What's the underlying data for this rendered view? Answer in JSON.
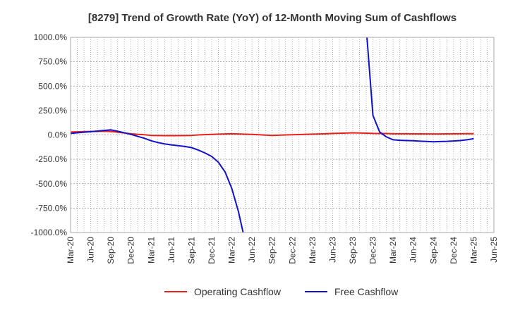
{
  "chart_data": {
    "type": "line",
    "title": "[8279]  Trend of Growth Rate (YoY) of 12-Month Moving Sum of Cashflows",
    "xlabel": "",
    "ylabel": "",
    "ylim": [
      -1000,
      1000
    ],
    "grid": true,
    "legend_position": "bottom",
    "x_tick_labels": [
      "Mar-20",
      "Jun-20",
      "Sep-20",
      "Dec-20",
      "Mar-21",
      "Jun-21",
      "Sep-21",
      "Dec-21",
      "Mar-22",
      "Jun-22",
      "Sep-22",
      "Dec-22",
      "Mar-23",
      "Jun-23",
      "Sep-23",
      "Dec-23",
      "Mar-24",
      "Jun-24",
      "Sep-24",
      "Dec-24",
      "Mar-25",
      "Jun-25"
    ],
    "y_tick_labels": [
      "1000.0%",
      "750.0%",
      "500.0%",
      "250.0%",
      "0.0%",
      "-250.0%",
      "-500.0%",
      "-750.0%",
      "-1000.0%"
    ],
    "y_ticks": [
      1000,
      750,
      500,
      250,
      0,
      -250,
      -500,
      -750,
      -1000
    ],
    "series": [
      {
        "name": "Operating Cashflow",
        "color": "#e8211b",
        "points": [
          [
            "2020-03",
            30
          ],
          [
            "2020-04",
            32
          ],
          [
            "2020-05",
            34
          ],
          [
            "2020-06",
            35
          ],
          [
            "2020-07",
            36
          ],
          [
            "2020-08",
            38
          ],
          [
            "2020-09",
            35
          ],
          [
            "2020-10",
            28
          ],
          [
            "2020-11",
            20
          ],
          [
            "2020-12",
            12
          ],
          [
            "2021-01",
            6
          ],
          [
            "2021-02",
            2
          ],
          [
            "2021-03",
            -5
          ],
          [
            "2021-04",
            -6
          ],
          [
            "2021-05",
            -7
          ],
          [
            "2021-06",
            -7
          ],
          [
            "2021-07",
            -7
          ],
          [
            "2021-08",
            -6
          ],
          [
            "2021-09",
            -5
          ],
          [
            "2021-10",
            0
          ],
          [
            "2021-11",
            3
          ],
          [
            "2021-12",
            5
          ],
          [
            "2022-01",
            8
          ],
          [
            "2022-02",
            10
          ],
          [
            "2022-03",
            12
          ],
          [
            "2022-04",
            10
          ],
          [
            "2022-05",
            7
          ],
          [
            "2022-06",
            5
          ],
          [
            "2022-07",
            2
          ],
          [
            "2022-08",
            -2
          ],
          [
            "2022-09",
            -5
          ],
          [
            "2022-10",
            -3
          ],
          [
            "2022-11",
            0
          ],
          [
            "2022-12",
            2
          ],
          [
            "2023-01",
            4
          ],
          [
            "2023-02",
            6
          ],
          [
            "2023-03",
            8
          ],
          [
            "2023-04",
            10
          ],
          [
            "2023-05",
            12
          ],
          [
            "2023-06",
            15
          ],
          [
            "2023-07",
            17
          ],
          [
            "2023-08",
            19
          ],
          [
            "2023-09",
            22
          ],
          [
            "2023-10",
            20
          ],
          [
            "2023-11",
            18
          ],
          [
            "2023-12",
            15
          ],
          [
            "2024-01",
            14
          ],
          [
            "2024-02",
            14
          ],
          [
            "2024-03",
            12
          ],
          [
            "2024-04",
            12
          ],
          [
            "2024-05",
            12
          ],
          [
            "2024-06",
            11
          ],
          [
            "2024-07",
            11
          ],
          [
            "2024-08",
            10
          ],
          [
            "2024-09",
            10
          ],
          [
            "2024-10",
            10
          ],
          [
            "2024-11",
            11
          ],
          [
            "2024-12",
            12
          ],
          [
            "2025-01",
            12
          ],
          [
            "2025-02",
            13
          ],
          [
            "2025-03",
            13
          ]
        ]
      },
      {
        "name": "Free Cashflow",
        "color": "#1111cc",
        "points": [
          [
            "2020-03",
            15
          ],
          [
            "2020-04",
            22
          ],
          [
            "2020-05",
            28
          ],
          [
            "2020-06",
            33
          ],
          [
            "2020-07",
            40
          ],
          [
            "2020-08",
            46
          ],
          [
            "2020-09",
            52
          ],
          [
            "2020-10",
            38
          ],
          [
            "2020-11",
            22
          ],
          [
            "2020-12",
            5
          ],
          [
            "2021-01",
            -15
          ],
          [
            "2021-02",
            -35
          ],
          [
            "2021-03",
            -60
          ],
          [
            "2021-04",
            -78
          ],
          [
            "2021-05",
            -92
          ],
          [
            "2021-06",
            -102
          ],
          [
            "2021-07",
            -110
          ],
          [
            "2021-08",
            -118
          ],
          [
            "2021-09",
            -130
          ],
          [
            "2021-10",
            -155
          ],
          [
            "2021-11",
            -185
          ],
          [
            "2021-12",
            -220
          ],
          [
            "2022-01",
            -280
          ],
          [
            "2022-02",
            -380
          ],
          [
            "2022-03",
            -550
          ],
          [
            "2022-04",
            -790
          ],
          [
            "2022-05",
            -1100
          ],
          null,
          [
            "2023-11",
            1100
          ],
          [
            "2023-12",
            200
          ],
          [
            "2024-01",
            30
          ],
          [
            "2024-02",
            -20
          ],
          [
            "2024-03",
            -50
          ],
          [
            "2024-04",
            -55
          ],
          [
            "2024-05",
            -58
          ],
          [
            "2024-06",
            -60
          ],
          [
            "2024-07",
            -64
          ],
          [
            "2024-08",
            -67
          ],
          [
            "2024-09",
            -70
          ],
          [
            "2024-10",
            -68
          ],
          [
            "2024-11",
            -66
          ],
          [
            "2024-12",
            -62
          ],
          [
            "2025-01",
            -58
          ],
          [
            "2025-02",
            -50
          ],
          [
            "2025-03",
            -38
          ]
        ]
      }
    ]
  }
}
